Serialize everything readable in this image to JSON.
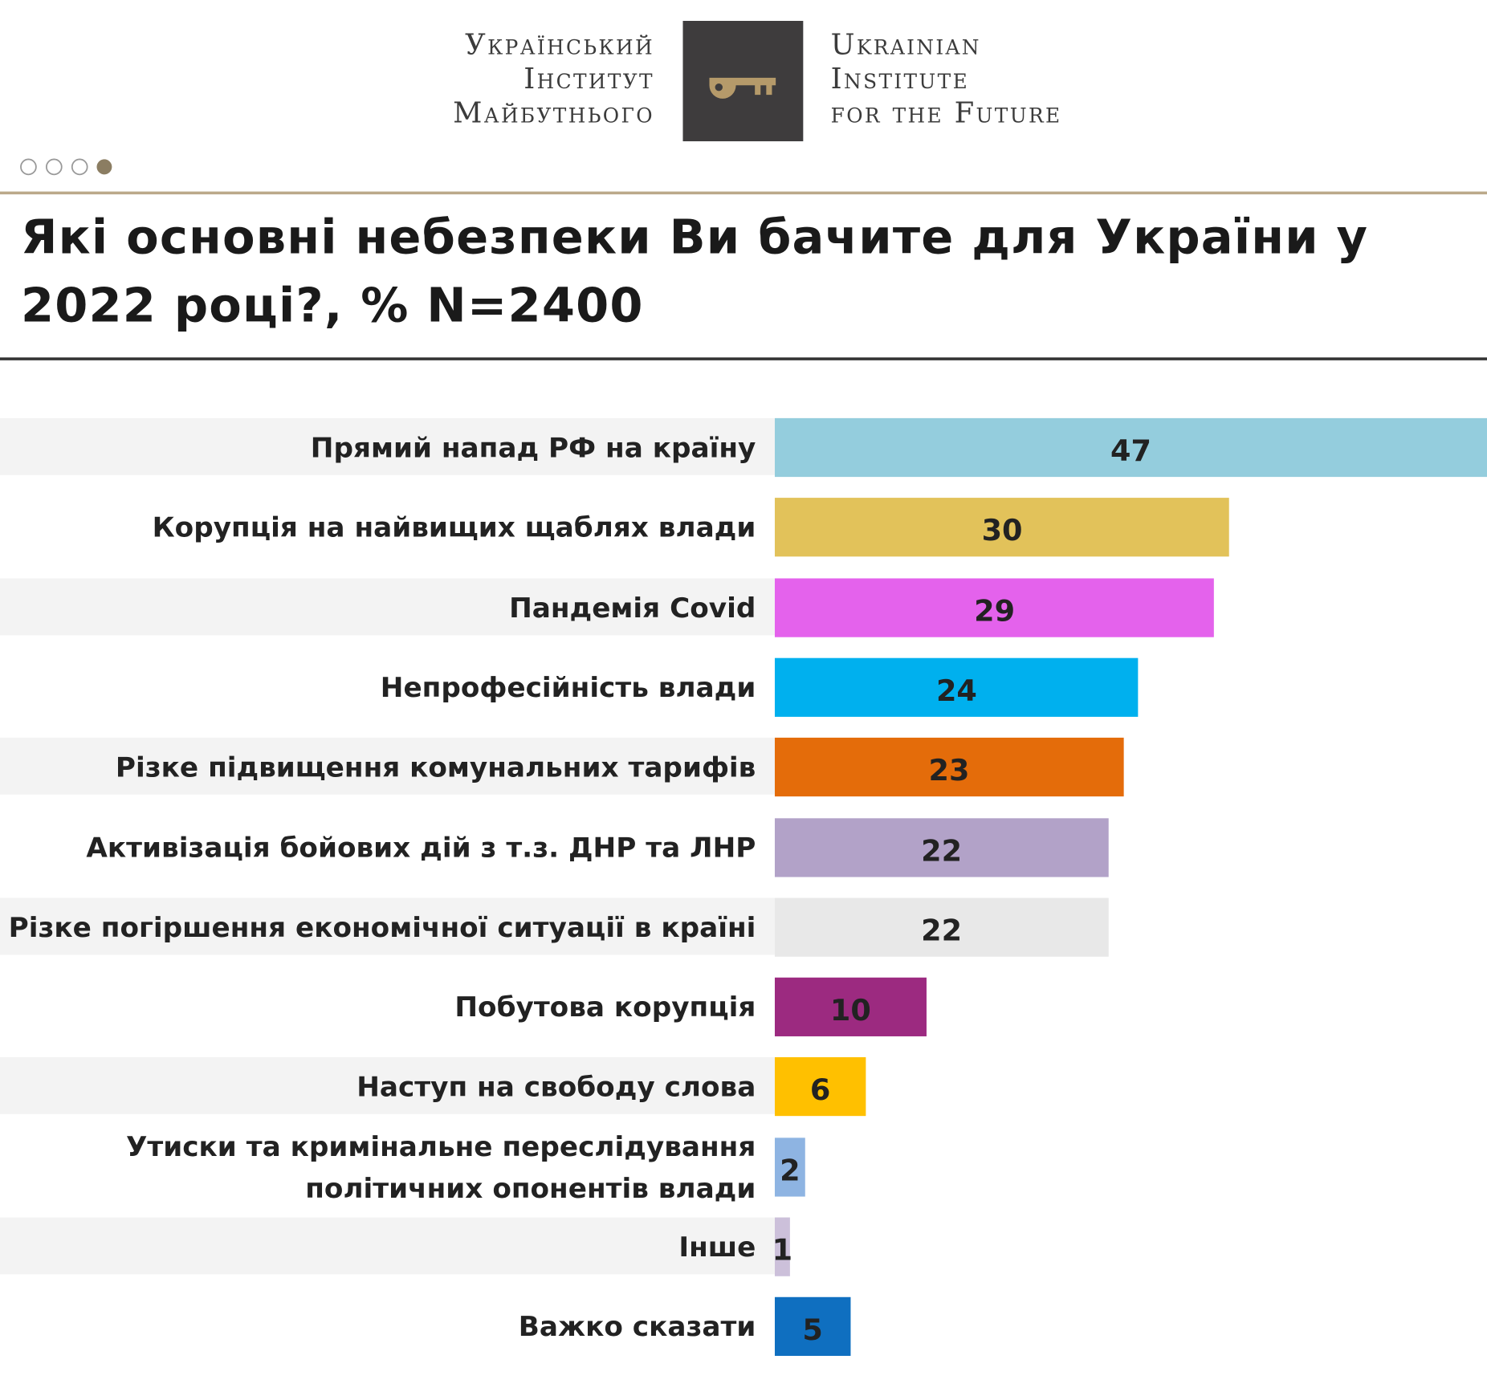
{
  "header": {
    "logo_ua": [
      "Український",
      "Інститут",
      "Майбутнього"
    ],
    "logo_en": [
      "Ukrainian",
      "Institute",
      "for the Future"
    ]
  },
  "chart_data": {
    "type": "bar",
    "orientation": "horizontal",
    "title": "Які основні небезпеки Ви бачите для України у 2022 році?, % N=2400",
    "categories": [
      "Прямий напад РФ на країну",
      "Корупція на найвищих щаблях влади",
      "Пандемія Covid",
      "Непрофесійність влади",
      "Різке підвищення комунальних тарифів",
      "Активізація бойових дій з т.з. ДНР та ЛНР",
      "Різке погіршення економічної ситуації в країні",
      "Побутова корупція",
      "Наступ на свободу слова",
      "Утиски та кримінальне переслідування політичних опонентів влади",
      "Інше",
      "Важко сказати"
    ],
    "values": [
      47,
      30,
      29,
      24,
      23,
      22,
      22,
      10,
      6,
      2,
      1,
      5
    ],
    "colors": [
      "#94cddd",
      "#e2c25a",
      "#e462ec",
      "#00b0ee",
      "#e46c0a",
      "#b2a2c8",
      "#e8e8e8",
      "#9c2a80",
      "#ffc000",
      "#8eb4e2",
      "#ccc0da",
      "#0f6fc0"
    ]
  }
}
